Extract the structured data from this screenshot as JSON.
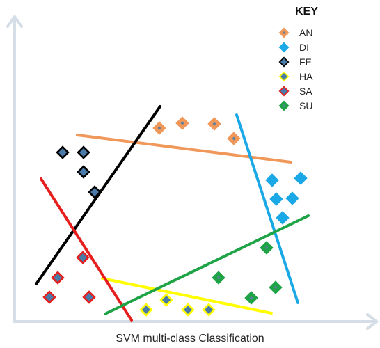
{
  "figure": {
    "key_title": "KEY",
    "caption": "SVM multi-class Classification",
    "legend": [
      {
        "label": "AN",
        "color": "#f0975a",
        "border": "#ffffff"
      },
      {
        "label": "DI",
        "color": "#1aa8e6",
        "border": "#ffffff"
      },
      {
        "label": "FE",
        "color": "#4a7ba8",
        "border": "#000000"
      },
      {
        "label": "HA",
        "color": "#4a7ba8",
        "border": "#ffff00"
      },
      {
        "label": "SA",
        "color": "#4a7ba8",
        "border": "#e61e1e"
      },
      {
        "label": "SU",
        "color": "#1fa347",
        "border": "#ffffff"
      }
    ],
    "class_styles": {
      "AN": {
        "fill": "#f0975a",
        "border": "#f0975a",
        "center": "#5b7fa0"
      },
      "DI": {
        "fill": "#1aa8e6",
        "border": "#1aa8e6",
        "center": "#1aa8e6"
      },
      "FE": {
        "fill": "#4a7ba8",
        "border": "#000000",
        "center": "#4a7ba8"
      },
      "HA": {
        "fill": "#4a7ba8",
        "border": "#ffff00",
        "center": "#4a7ba8"
      },
      "SA": {
        "fill": "#4a7ba8",
        "border": "#e61e1e",
        "center": "#4a7ba8"
      },
      "SU": {
        "fill": "#1fa347",
        "border": "#1fa347",
        "center": "#5b7fa0"
      }
    },
    "boundary_colors": {
      "AN": "#f0975a",
      "DI": "#1aa8e6",
      "FE": "#000000",
      "HA": "#ffff00",
      "SA": "#e61e1e",
      "SU": "#1fa347"
    }
  }
}
